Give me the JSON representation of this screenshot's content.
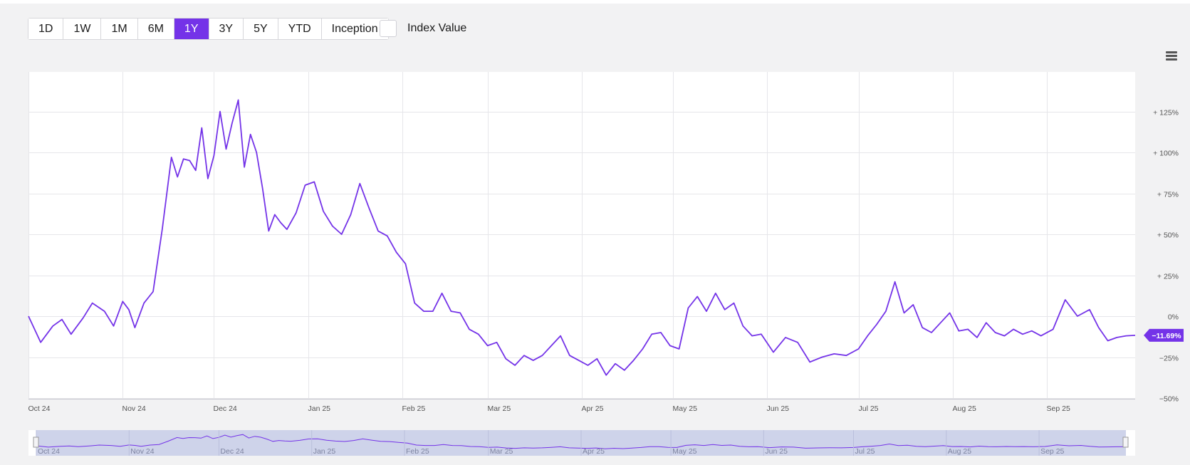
{
  "toolbar": {
    "ranges": [
      "1D",
      "1W",
      "1M",
      "6M",
      "1Y",
      "3Y",
      "5Y",
      "YTD",
      "Inception"
    ],
    "active_range": "1Y",
    "index_value_label": "Index Value",
    "menu_icon": "hamburger-menu-icon"
  },
  "colors": {
    "line": "#7433e8",
    "grid": "#e6e6ea",
    "plot_bg": "#ffffff",
    "navigator_fill": "#c5cbe6",
    "axis_text": "#555555"
  },
  "chart_data": {
    "type": "line",
    "title": "",
    "xlabel": "",
    "ylabel": "",
    "x_tick_labels": [
      "Oct 24",
      "Nov 24",
      "Dec 24",
      "Jan 25",
      "Feb 25",
      "Mar 25",
      "Apr 25",
      "May 25",
      "Jun 25",
      "Jul 25",
      "Aug 25",
      "Sep 25"
    ],
    "y_tick_labels": [
      "+ 125%",
      "+ 100%",
      "+ 75%",
      "+ 50%",
      "+ 25%",
      "0%",
      "−25%",
      "−50%"
    ],
    "y_ticks": [
      125,
      100,
      75,
      50,
      25,
      0,
      -25,
      -50
    ],
    "ylim": [
      -50,
      150
    ],
    "xlim": [
      "2024-10-01",
      "2025-09-30"
    ],
    "grid": true,
    "last_value_label": "−11.69%",
    "series": [
      {
        "x": [
          "2024-10-01",
          "2024-10-05",
          "2024-10-09",
          "2024-10-12",
          "2024-10-15",
          "2024-10-19",
          "2024-10-22",
          "2024-10-26",
          "2024-10-29",
          "2024-11-01",
          "2024-11-03",
          "2024-11-05",
          "2024-11-08",
          "2024-11-11",
          "2024-11-14",
          "2024-11-17",
          "2024-11-19",
          "2024-11-21",
          "2024-11-23",
          "2024-11-25",
          "2024-11-27",
          "2024-11-29",
          "2024-12-01",
          "2024-12-03",
          "2024-12-05",
          "2024-12-07",
          "2024-12-09",
          "2024-12-11",
          "2024-12-13",
          "2024-12-15",
          "2024-12-17",
          "2024-12-19",
          "2024-12-21",
          "2024-12-23",
          "2024-12-25",
          "2024-12-28",
          "2024-12-31",
          "2025-01-03",
          "2025-01-06",
          "2025-01-09",
          "2025-01-12",
          "2025-01-15",
          "2025-01-18",
          "2025-01-21",
          "2025-01-24",
          "2025-01-27",
          "2025-01-30",
          "2025-02-02",
          "2025-02-05",
          "2025-02-08",
          "2025-02-11",
          "2025-02-14",
          "2025-02-17",
          "2025-02-20",
          "2025-02-23",
          "2025-02-26",
          "2025-03-01",
          "2025-03-04",
          "2025-03-07",
          "2025-03-10",
          "2025-03-13",
          "2025-03-16",
          "2025-03-19",
          "2025-03-22",
          "2025-03-25",
          "2025-03-28",
          "2025-03-31",
          "2025-04-03",
          "2025-04-06",
          "2025-04-09",
          "2025-04-12",
          "2025-04-15",
          "2025-04-18",
          "2025-04-21",
          "2025-04-24",
          "2025-04-27",
          "2025-04-30",
          "2025-05-03",
          "2025-05-06",
          "2025-05-09",
          "2025-05-12",
          "2025-05-15",
          "2025-05-18",
          "2025-05-21",
          "2025-05-24",
          "2025-05-27",
          "2025-05-30",
          "2025-06-03",
          "2025-06-07",
          "2025-06-11",
          "2025-06-15",
          "2025-06-19",
          "2025-06-23",
          "2025-06-27",
          "2025-07-01",
          "2025-07-04",
          "2025-07-07",
          "2025-07-10",
          "2025-07-13",
          "2025-07-16",
          "2025-07-19",
          "2025-07-22",
          "2025-07-25",
          "2025-07-28",
          "2025-07-31",
          "2025-08-03",
          "2025-08-06",
          "2025-08-09",
          "2025-08-12",
          "2025-08-15",
          "2025-08-18",
          "2025-08-21",
          "2025-08-24",
          "2025-08-27",
          "2025-08-30",
          "2025-09-03",
          "2025-09-07",
          "2025-09-11",
          "2025-09-15",
          "2025-09-18",
          "2025-09-21",
          "2025-09-24",
          "2025-09-27",
          "2025-09-30"
        ],
        "y": [
          0,
          -16,
          -6,
          -2,
          -11,
          -1,
          8,
          3,
          -6,
          9,
          4,
          -7,
          8,
          15,
          53,
          97,
          85,
          96,
          95,
          89,
          115,
          84,
          98,
          125,
          102,
          118,
          132,
          91,
          111,
          100,
          78,
          52,
          62,
          57,
          53,
          63,
          80,
          82,
          64,
          55,
          50,
          62,
          81,
          66,
          52,
          49,
          39,
          32,
          8,
          3,
          3,
          14,
          3,
          2,
          -8,
          -11,
          -18,
          -16,
          -26,
          -30,
          -24,
          -27,
          -24,
          -18,
          -12,
          -24,
          -27,
          -30,
          -26,
          -36,
          -29,
          -33,
          -27,
          -20,
          -11,
          -10,
          -18,
          -20,
          5,
          12,
          3,
          14,
          4,
          8,
          -6,
          -12,
          -11,
          -22,
          -13,
          -16,
          -28,
          -25,
          -23,
          -24,
          -20,
          -12,
          -5,
          3,
          21,
          2,
          7,
          -7,
          -10,
          -4,
          2,
          -9,
          -8,
          -13,
          -4,
          -10,
          -12,
          -8,
          -11,
          -9,
          -12,
          -8,
          10,
          0,
          4,
          -7,
          -15,
          -13,
          -12,
          -11.69
        ]
      }
    ],
    "navigator": {
      "x_tick_labels": [
        "Oct 24",
        "Nov 24",
        "Dec 24",
        "Jan 25",
        "Feb 25",
        "Mar 25",
        "Apr 25",
        "May 25",
        "Jun 25",
        "Jul 25",
        "Aug 25",
        "Sep 25"
      ]
    }
  }
}
